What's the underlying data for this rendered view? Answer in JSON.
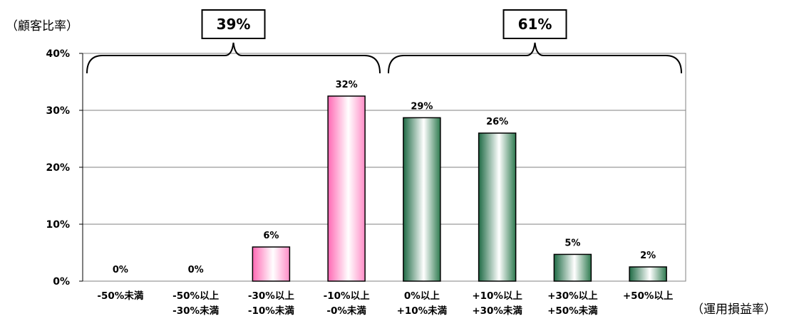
{
  "chart_data": {
    "type": "bar",
    "ylabel": "（顧客比率）",
    "xlabel": "（運用損益率）",
    "ylim": [
      0,
      40
    ],
    "yticks": [
      0,
      10,
      20,
      30,
      40
    ],
    "ytick_labels": [
      "0%",
      "10%",
      "20%",
      "30%",
      "40%"
    ],
    "categories": [
      [
        "-50%未満",
        ""
      ],
      [
        "-50%以上",
        "-30%未満"
      ],
      [
        "-30%以上",
        "-10%未満"
      ],
      [
        "-10%以上",
        "-0%未満"
      ],
      [
        "0%以上",
        "+10%未満"
      ],
      [
        "+10%以上",
        "+30%未満"
      ],
      [
        "+30%以上",
        "+50%未満"
      ],
      [
        "+50%以上",
        ""
      ]
    ],
    "values": [
      0,
      0,
      6,
      32.5,
      28.7,
      26,
      4.7,
      2.5
    ],
    "value_labels": [
      "0%",
      "0%",
      "6%",
      "32%",
      "29%",
      "26%",
      "5%",
      "2%"
    ],
    "groups": [
      {
        "label": "39%",
        "from": 0,
        "to": 3,
        "color": "pink"
      },
      {
        "label": "61%",
        "from": 4,
        "to": 7,
        "color": "green"
      }
    ],
    "grid": true,
    "colors": {
      "pink": "#ff7fbf",
      "green": "#2e7a4f",
      "grid": "#808080"
    }
  }
}
